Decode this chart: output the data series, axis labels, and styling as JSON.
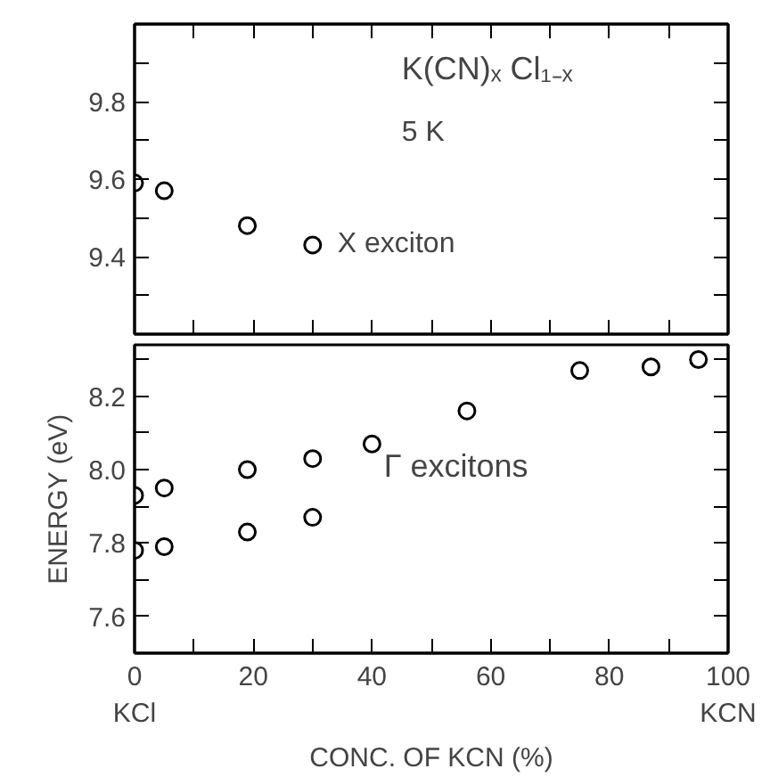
{
  "chart_data": [
    {
      "type": "scatter",
      "marker": "circle",
      "grid": false,
      "tick_labels": "y",
      "xlim": [
        0,
        100
      ],
      "xticks": [
        0,
        {
          "value": 10,
          "label": null
        },
        20,
        {
          "value": 30,
          "label": null
        },
        40,
        {
          "value": 50,
          "label": null
        },
        60,
        {
          "value": 70,
          "label": null
        },
        80,
        {
          "value": 90,
          "label": null
        },
        100
      ],
      "ylim": [
        9.2,
        10.0
      ],
      "yticks": [
        {
          "value": 9.3,
          "label": null
        },
        9.4,
        {
          "value": 9.5,
          "label": null
        },
        9.6,
        {
          "value": 9.7,
          "label": null
        },
        9.8,
        {
          "value": 9.9,
          "label": null
        }
      ],
      "series": [
        {
          "color": "#000000",
          "x": [
            0,
            5,
            19,
            30
          ],
          "values": [
            9.59,
            9.57,
            9.48,
            9.43
          ]
        }
      ],
      "annotations": [
        "K(CN)ₓ Cl₁₋ₓ",
        "5 K",
        {
          "text": "X exciton",
          "x": 30,
          "y": 9.43
        }
      ]
    },
    {
      "type": "scatter",
      "marker": "circle",
      "grid": false,
      "xlabel": "CONC. OF KCN (%)",
      "ylabel": "ENERGY (eV)",
      "xlim": [
        0,
        100
      ],
      "xticks": [
        {
          "value": 0,
          "label": "0\nKCl"
        },
        {
          "value": 10,
          "label": null
        },
        20,
        {
          "value": 30,
          "label": null
        },
        40,
        {
          "value": 50,
          "label": null
        },
        60,
        {
          "value": 70,
          "label": null
        },
        80,
        {
          "value": 90,
          "label": null
        },
        {
          "value": 100,
          "label": "100\nKCN"
        }
      ],
      "ylim": [
        7.5,
        8.34
      ],
      "yticks": [
        {
          "value": 7.7,
          "label": null
        },
        7.6,
        7.8,
        {
          "value": 7.9,
          "label": null
        },
        {
          "value": 8.0,
          "label": "8.0"
        },
        {
          "value": 8.1,
          "label": null
        },
        8.2,
        {
          "value": 8.3,
          "label": null
        }
      ],
      "series": [
        {
          "color": "#000000",
          "x": [
            0,
            5,
            19,
            30,
            40,
            56,
            75,
            87,
            95,
            0,
            5,
            19,
            30
          ],
          "values": [
            7.93,
            7.95,
            8.0,
            8.03,
            8.07,
            8.16,
            8.27,
            8.28,
            8.3,
            7.78,
            7.79,
            7.83,
            7.87
          ]
        }
      ],
      "annotations": [
        "Γ excitons"
      ]
    }
  ]
}
